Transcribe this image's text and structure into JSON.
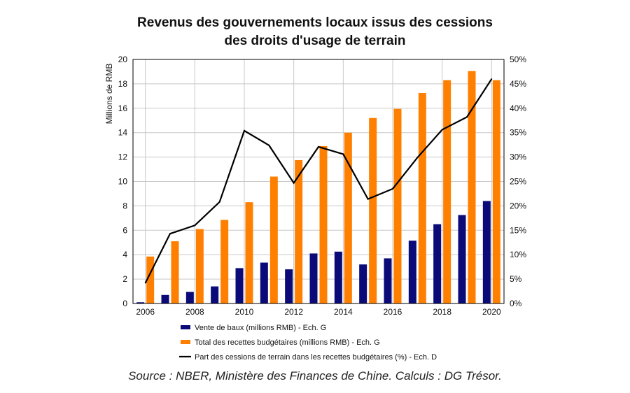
{
  "chart_data": {
    "type": "bar",
    "title": [
      "Revenus des gouvernements locaux issus des cessions",
      "des droits d'usage de terrain"
    ],
    "ylabel": "Millions de RMB",
    "x": [
      2006,
      2007,
      2008,
      2009,
      2010,
      2011,
      2012,
      2013,
      2014,
      2015,
      2016,
      2017,
      2018,
      2019,
      2020
    ],
    "x_ticks": [
      "2006",
      "2008",
      "2010",
      "2012",
      "2014",
      "2016",
      "2018",
      "2020"
    ],
    "y_left": {
      "min": 0,
      "max": 20,
      "ticks": [
        "0",
        "2",
        "4",
        "6",
        "8",
        "10",
        "12",
        "14",
        "16",
        "18",
        "20"
      ]
    },
    "y_right": {
      "min": 0,
      "max": 50,
      "ticks": [
        "0%",
        "5%",
        "10%",
        "15%",
        "20%",
        "25%",
        "30%",
        "35%",
        "40%",
        "45%",
        "50%"
      ]
    },
    "grid": true,
    "legend_position": "bottom",
    "series": [
      {
        "name": "Vente de baux (millions RMB) - Ech. G",
        "kind": "bar",
        "axis": "left",
        "color": "#0a0a78",
        "values": [
          0.1,
          0.7,
          0.95,
          1.4,
          2.9,
          3.35,
          2.8,
          4.1,
          4.25,
          3.2,
          3.7,
          5.15,
          6.5,
          7.25,
          8.4
        ]
      },
      {
        "name": "Total des recettes budgétaires (millions RMB) - Ech. G",
        "kind": "bar",
        "axis": "left",
        "color": "#ff8000",
        "values": [
          3.85,
          5.1,
          6.1,
          6.85,
          8.3,
          10.4,
          11.75,
          12.9,
          14.0,
          15.2,
          15.95,
          17.25,
          18.3,
          19.05,
          18.3
        ]
      },
      {
        "name": "Part des cessions de terrain dans les recettes budgétaires (%) - Ech. D",
        "kind": "line",
        "axis": "right",
        "color": "#000000",
        "values": [
          4.2,
          14.3,
          16.0,
          20.8,
          35.4,
          32.4,
          24.7,
          32.1,
          30.6,
          21.4,
          23.5,
          29.9,
          35.6,
          38.2,
          46.0
        ]
      }
    ]
  },
  "source": "Source : NBER, Ministère des Finances de Chine. Calculs : DG Trésor."
}
